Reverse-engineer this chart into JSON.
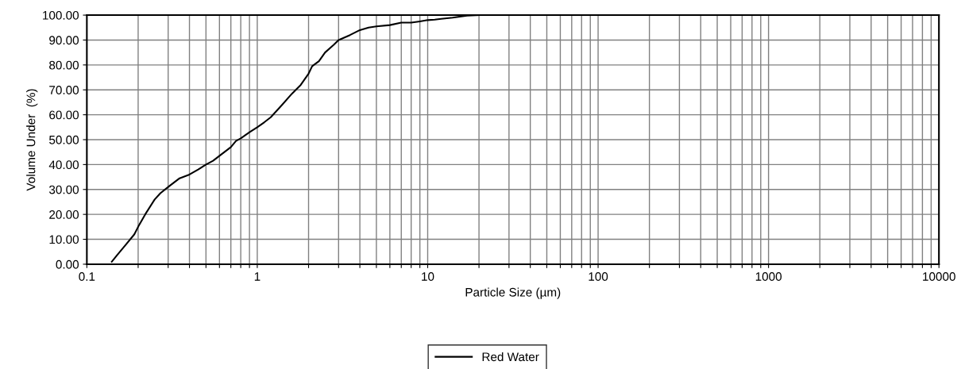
{
  "chart_data": {
    "type": "line",
    "xlabel": "Particle Size (µm)",
    "ylabel": "Volume Under  (%)",
    "log": "x",
    "grid": true,
    "legend": "bottom",
    "line_style": "solid",
    "marker": "none",
    "xlim": [
      0.1,
      10000
    ],
    "ylim": [
      0,
      100
    ],
    "xticks": [
      {
        "value": 0.1,
        "label": "0.1"
      },
      {
        "value": 0.2,
        "label": null
      },
      {
        "value": 0.3,
        "label": null
      },
      {
        "value": 0.4,
        "label": null
      },
      {
        "value": 0.5,
        "label": null
      },
      {
        "value": 0.6,
        "label": null
      },
      {
        "value": 0.7,
        "label": null
      },
      {
        "value": 0.8,
        "label": null
      },
      {
        "value": 0.9,
        "label": null
      },
      1,
      {
        "value": 2,
        "label": null
      },
      {
        "value": 3,
        "label": null
      },
      {
        "value": 4,
        "label": null
      },
      {
        "value": 5,
        "label": null
      },
      {
        "value": 6,
        "label": null
      },
      {
        "value": 7,
        "label": null
      },
      {
        "value": 8,
        "label": null
      },
      {
        "value": 9,
        "label": null
      },
      10,
      {
        "value": 20,
        "label": null
      },
      {
        "value": 30,
        "label": null
      },
      {
        "value": 40,
        "label": null
      },
      {
        "value": 50,
        "label": null
      },
      {
        "value": 60,
        "label": null
      },
      {
        "value": 70,
        "label": null
      },
      {
        "value": 80,
        "label": null
      },
      {
        "value": 90,
        "label": null
      },
      100,
      {
        "value": 200,
        "label": null
      },
      {
        "value": 300,
        "label": null
      },
      {
        "value": 400,
        "label": null
      },
      {
        "value": 500,
        "label": null
      },
      {
        "value": 600,
        "label": null
      },
      {
        "value": 700,
        "label": null
      },
      {
        "value": 800,
        "label": null
      },
      {
        "value": 900,
        "label": null
      },
      1000,
      {
        "value": 2000,
        "label": null
      },
      {
        "value": 3000,
        "label": null
      },
      {
        "value": 4000,
        "label": null
      },
      {
        "value": 5000,
        "label": null
      },
      {
        "value": 6000,
        "label": null
      },
      {
        "value": 7000,
        "label": null
      },
      {
        "value": 8000,
        "label": null
      },
      {
        "value": 9000,
        "label": null
      },
      10000
    ],
    "yticks": [
      {
        "value": 0,
        "label": "0.00"
      },
      {
        "value": 10,
        "label": "10.00"
      },
      {
        "value": 20,
        "label": "20.00"
      },
      {
        "value": 30,
        "label": "30.00"
      },
      {
        "value": 40,
        "label": "40.00"
      },
      {
        "value": 50,
        "label": "50.00"
      },
      {
        "value": 60,
        "label": "60.00"
      },
      {
        "value": 70,
        "label": "70.00"
      },
      {
        "value": 80,
        "label": "80.00"
      },
      {
        "value": 90,
        "label": "90.00"
      },
      {
        "value": 100,
        "label": "100.00"
      }
    ],
    "series": [
      {
        "name": "Red Water",
        "color": "#000000",
        "x": [
          0.14,
          0.15,
          0.17,
          0.19,
          0.2,
          0.22,
          0.25,
          0.27,
          0.3,
          0.35,
          0.4,
          0.45,
          0.5,
          0.55,
          0.6,
          0.7,
          0.75,
          0.8,
          0.9,
          1.0,
          1.1,
          1.2,
          1.4,
          1.6,
          1.8,
          2.0,
          2.1,
          2.3,
          2.5,
          2.8,
          3.0,
          3.5,
          4.0,
          4.5,
          5,
          6,
          7,
          8,
          9,
          10,
          11,
          12,
          14,
          17,
          20
        ],
        "values": [
          1,
          3.5,
          8,
          12,
          15,
          20,
          26,
          28.5,
          31,
          34.5,
          36,
          38,
          40,
          41.5,
          43.5,
          47,
          49.5,
          50.5,
          53,
          55,
          57,
          59,
          64,
          68.5,
          72,
          76.5,
          79.5,
          81.5,
          85,
          88,
          90,
          92,
          94,
          95,
          95.5,
          96,
          97,
          97,
          97.5,
          98,
          98.2,
          98.5,
          99,
          99.8,
          100
        ]
      }
    ]
  }
}
